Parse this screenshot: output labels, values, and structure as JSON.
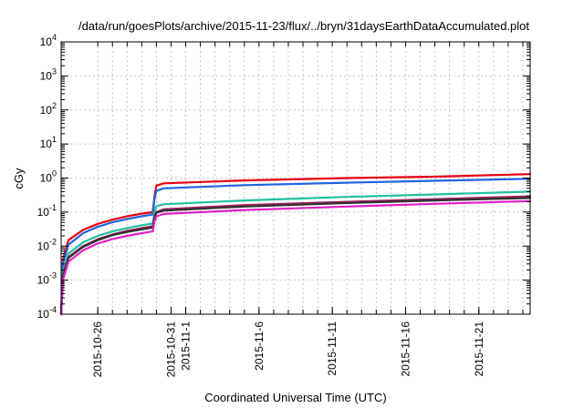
{
  "chart_data": {
    "type": "line",
    "title": "/data/run/goesPlots/archive/2015-11-23/flux/../bryn/31daysEarthDataAccumulated.plot",
    "xlabel": "Coordinated Universal Time (UTC)",
    "ylabel": "cGy",
    "yscale": "log",
    "ylim": [
      0.0001,
      10000
    ],
    "xlim": [
      "2015-10-23T12:00",
      "2015-11-24T12:00"
    ],
    "y_ticks": [
      {
        "value": 0.0001,
        "base": "10",
        "exp": "-4"
      },
      {
        "value": 0.001,
        "base": "10",
        "exp": "-3"
      },
      {
        "value": 0.01,
        "base": "10",
        "exp": "-2"
      },
      {
        "value": 0.1,
        "base": "10",
        "exp": "-1"
      },
      {
        "value": 1,
        "base": "10",
        "exp": "0"
      },
      {
        "value": 10,
        "base": "10",
        "exp": "1"
      },
      {
        "value": 100,
        "base": "10",
        "exp": "2"
      },
      {
        "value": 1000,
        "base": "10",
        "exp": "3"
      },
      {
        "value": 10000,
        "base": "10",
        "exp": "4"
      }
    ],
    "x_ticks": [
      {
        "date": "2015-10-26",
        "label": "2015-10-26"
      },
      {
        "date": "2015-10-31",
        "label": "2015-10-31"
      },
      {
        "date": "2015-11-01",
        "label": "2015-11-1"
      },
      {
        "date": "2015-11-06",
        "label": "2015-11-6"
      },
      {
        "date": "2015-11-11",
        "label": "2015-11-11"
      },
      {
        "date": "2015-11-16",
        "label": "2015-11-16"
      },
      {
        "date": "2015-11-21",
        "label": "2015-11-21"
      }
    ],
    "x_grid_dates": [
      "2015-10-26",
      "2015-10-27",
      "2015-10-28",
      "2015-10-29",
      "2015-10-30",
      "2015-10-31",
      "2015-11-01",
      "2015-11-02",
      "2015-11-03",
      "2015-11-04",
      "2015-11-05",
      "2015-11-06",
      "2015-11-07",
      "2015-11-08",
      "2015-11-09",
      "2015-11-10",
      "2015-11-11",
      "2015-11-12",
      "2015-11-13",
      "2015-11-14",
      "2015-11-15",
      "2015-11-16",
      "2015-11-17",
      "2015-11-18",
      "2015-11-19",
      "2015-11-20",
      "2015-11-21",
      "2015-11-22",
      "2015-11-23",
      "2015-11-24"
    ],
    "grid": true,
    "series": [
      {
        "color": "#e6000f",
        "points": [
          [
            "2015-10-23T12:00",
            0.0001
          ],
          [
            "2015-10-23T15:00",
            0.004
          ],
          [
            "2015-10-24T00:00",
            0.015
          ],
          [
            "2015-10-25T00:00",
            0.03
          ],
          [
            "2015-10-26T00:00",
            0.045
          ],
          [
            "2015-10-27T00:00",
            0.06
          ],
          [
            "2015-10-28T00:00",
            0.075
          ],
          [
            "2015-10-29T00:00",
            0.09
          ],
          [
            "2015-10-29T18:00",
            0.1
          ],
          [
            "2015-10-29T21:00",
            0.3
          ],
          [
            "2015-10-30T00:00",
            0.6
          ],
          [
            "2015-10-30T12:00",
            0.7
          ],
          [
            "2015-11-05T00:00",
            0.85
          ],
          [
            "2015-11-12T00:00",
            1.0
          ],
          [
            "2015-11-18T00:00",
            1.1
          ],
          [
            "2015-11-24T12:00",
            1.3
          ]
        ]
      },
      {
        "color": "#1f63e0",
        "points": [
          [
            "2015-10-23T12:00",
            0.0001
          ],
          [
            "2015-10-23T15:00",
            0.003
          ],
          [
            "2015-10-24T00:00",
            0.011
          ],
          [
            "2015-10-25T00:00",
            0.024
          ],
          [
            "2015-10-26T00:00",
            0.037
          ],
          [
            "2015-10-27T00:00",
            0.05
          ],
          [
            "2015-10-28T00:00",
            0.062
          ],
          [
            "2015-10-29T00:00",
            0.075
          ],
          [
            "2015-10-29T18:00",
            0.085
          ],
          [
            "2015-10-29T21:00",
            0.25
          ],
          [
            "2015-10-30T00:00",
            0.42
          ],
          [
            "2015-10-30T12:00",
            0.5
          ],
          [
            "2015-11-05T00:00",
            0.62
          ],
          [
            "2015-11-12T00:00",
            0.73
          ],
          [
            "2015-11-18T00:00",
            0.83
          ],
          [
            "2015-11-24T12:00",
            0.95
          ]
        ]
      },
      {
        "color": "#20c0a0",
        "points": [
          [
            "2015-10-23T12:00",
            0.0001
          ],
          [
            "2015-10-23T15:00",
            0.0018
          ],
          [
            "2015-10-24T00:00",
            0.006
          ],
          [
            "2015-10-25T00:00",
            0.013
          ],
          [
            "2015-10-26T00:00",
            0.02
          ],
          [
            "2015-10-27T00:00",
            0.027
          ],
          [
            "2015-10-28T00:00",
            0.034
          ],
          [
            "2015-10-29T00:00",
            0.041
          ],
          [
            "2015-10-29T18:00",
            0.046
          ],
          [
            "2015-10-29T21:00",
            0.1
          ],
          [
            "2015-10-30T00:00",
            0.15
          ],
          [
            "2015-10-30T12:00",
            0.17
          ],
          [
            "2015-11-05T00:00",
            0.22
          ],
          [
            "2015-11-12T00:00",
            0.28
          ],
          [
            "2015-11-18T00:00",
            0.33
          ],
          [
            "2015-11-24T12:00",
            0.4
          ]
        ]
      },
      {
        "color": "#a02060",
        "points": [
          [
            "2015-10-23T12:00",
            0.0001
          ],
          [
            "2015-10-23T15:00",
            0.0014
          ],
          [
            "2015-10-24T00:00",
            0.0048
          ],
          [
            "2015-10-25T00:00",
            0.01
          ],
          [
            "2015-10-26T00:00",
            0.016
          ],
          [
            "2015-10-27T00:00",
            0.022
          ],
          [
            "2015-10-28T00:00",
            0.028
          ],
          [
            "2015-10-29T00:00",
            0.034
          ],
          [
            "2015-10-29T18:00",
            0.038
          ],
          [
            "2015-10-29T21:00",
            0.075
          ],
          [
            "2015-10-30T00:00",
            0.1
          ],
          [
            "2015-10-30T12:00",
            0.12
          ],
          [
            "2015-11-05T00:00",
            0.16
          ],
          [
            "2015-11-12T00:00",
            0.2
          ],
          [
            "2015-11-18T00:00",
            0.24
          ],
          [
            "2015-11-24T12:00",
            0.29
          ]
        ]
      },
      {
        "color": "#303030",
        "points": [
          [
            "2015-10-23T12:00",
            0.0001
          ],
          [
            "2015-10-23T15:00",
            0.0013
          ],
          [
            "2015-10-24T00:00",
            0.0045
          ],
          [
            "2015-10-25T00:00",
            0.0095
          ],
          [
            "2015-10-26T00:00",
            0.015
          ],
          [
            "2015-10-27T00:00",
            0.021
          ],
          [
            "2015-10-28T00:00",
            0.026
          ],
          [
            "2015-10-29T00:00",
            0.031
          ],
          [
            "2015-10-29T18:00",
            0.035
          ],
          [
            "2015-10-29T21:00",
            0.07
          ],
          [
            "2015-10-30T00:00",
            0.095
          ],
          [
            "2015-10-30T12:00",
            0.11
          ],
          [
            "2015-11-05T00:00",
            0.145
          ],
          [
            "2015-11-12T00:00",
            0.185
          ],
          [
            "2015-11-18T00:00",
            0.22
          ],
          [
            "2015-11-24T12:00",
            0.26
          ]
        ]
      },
      {
        "color": "#e020c8",
        "points": [
          [
            "2015-10-23T12:00",
            0.0001
          ],
          [
            "2015-10-23T15:00",
            0.001
          ],
          [
            "2015-10-24T00:00",
            0.0035
          ],
          [
            "2015-10-25T00:00",
            0.0075
          ],
          [
            "2015-10-26T00:00",
            0.012
          ],
          [
            "2015-10-27T00:00",
            0.016
          ],
          [
            "2015-10-28T00:00",
            0.02
          ],
          [
            "2015-10-29T00:00",
            0.024
          ],
          [
            "2015-10-29T18:00",
            0.027
          ],
          [
            "2015-10-29T21:00",
            0.055
          ],
          [
            "2015-10-30T00:00",
            0.075
          ],
          [
            "2015-10-30T12:00",
            0.088
          ],
          [
            "2015-11-05T00:00",
            0.115
          ],
          [
            "2015-11-12T00:00",
            0.145
          ],
          [
            "2015-11-18T00:00",
            0.175
          ],
          [
            "2015-11-24T12:00",
            0.21
          ]
        ]
      }
    ]
  }
}
